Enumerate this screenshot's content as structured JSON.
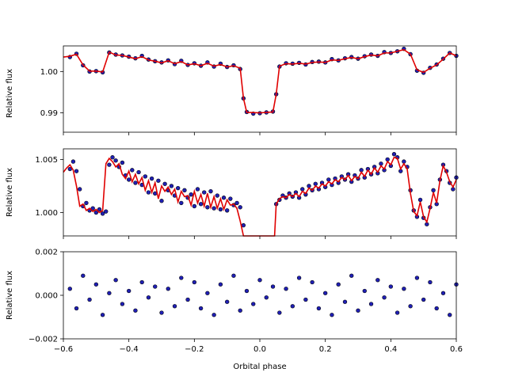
{
  "chart_data": [
    {
      "type": "scatter",
      "panel": "top",
      "ylabel": "Relative flux",
      "xlim": [
        -0.6,
        0.6
      ],
      "ylim": [
        0.9853,
        1.0062
      ],
      "yticks": [
        0.99,
        1.0
      ],
      "ytick_labels": [
        "0.99",
        "1.00"
      ],
      "x_tick_labels_shown": false,
      "series": [
        {
          "kind": "points",
          "color": "#1f1fb4",
          "x": [
            -0.58,
            -0.56,
            -0.54,
            -0.52,
            -0.5,
            -0.48,
            -0.46,
            -0.44,
            -0.42,
            -0.4,
            -0.38,
            -0.36,
            -0.34,
            -0.32,
            -0.3,
            -0.28,
            -0.26,
            -0.24,
            -0.22,
            -0.2,
            -0.18,
            -0.16,
            -0.14,
            -0.12,
            -0.1,
            -0.08,
            -0.06,
            -0.05,
            -0.04,
            -0.02,
            0.0,
            0.02,
            0.04,
            0.05,
            0.06,
            0.08,
            0.1,
            0.12,
            0.14,
            0.16,
            0.18,
            0.2,
            0.22,
            0.24,
            0.26,
            0.28,
            0.3,
            0.32,
            0.34,
            0.36,
            0.38,
            0.4,
            0.42,
            0.44,
            0.46,
            0.48,
            0.5,
            0.52,
            0.54,
            0.56,
            0.58,
            0.6
          ],
          "y": [
            1.0035,
            1.0043,
            1.0015,
            1.0,
            1.0001,
            0.9998,
            1.0046,
            1.0041,
            1.0039,
            1.0036,
            1.0032,
            1.0038,
            1.0029,
            1.0025,
            1.0022,
            1.0027,
            1.0018,
            1.0026,
            1.0016,
            1.002,
            1.0014,
            1.0022,
            1.0012,
            1.0019,
            1.0011,
            1.0015,
            1.0006,
            0.9935,
            0.9902,
            0.9898,
            0.9899,
            0.9901,
            0.9903,
            0.9945,
            1.0012,
            1.002,
            1.0019,
            1.0021,
            1.0017,
            1.0023,
            1.0024,
            1.0022,
            1.003,
            1.0027,
            1.0032,
            1.0035,
            1.0031,
            1.0037,
            1.0041,
            1.0038,
            1.0047,
            1.0045,
            1.0049,
            1.0055,
            1.0042,
            1.0002,
            0.9997,
            1.0009,
            1.0017,
            1.0031,
            1.0045,
            1.0038
          ]
        },
        {
          "kind": "model",
          "color": "#e00000",
          "x": [
            -0.6,
            -0.58,
            -0.56,
            -0.54,
            -0.52,
            -0.5,
            -0.48,
            -0.46,
            -0.44,
            -0.42,
            -0.4,
            -0.38,
            -0.36,
            -0.34,
            -0.32,
            -0.3,
            -0.28,
            -0.26,
            -0.24,
            -0.22,
            -0.2,
            -0.18,
            -0.16,
            -0.14,
            -0.12,
            -0.1,
            -0.08,
            -0.06,
            -0.05,
            -0.04,
            0.0,
            0.04,
            0.05,
            0.06,
            0.08,
            0.1,
            0.12,
            0.14,
            0.16,
            0.18,
            0.2,
            0.22,
            0.24,
            0.26,
            0.28,
            0.3,
            0.32,
            0.34,
            0.36,
            0.38,
            0.4,
            0.42,
            0.44,
            0.46,
            0.48,
            0.5,
            0.52,
            0.54,
            0.56,
            0.58,
            0.6
          ],
          "y": [
            1.0035,
            1.0037,
            1.0042,
            1.0016,
            1.0001,
            1.0001,
            0.9999,
            1.0047,
            1.004,
            1.0039,
            1.0035,
            1.0031,
            1.0036,
            1.0028,
            1.0025,
            1.0021,
            1.0026,
            1.0019,
            1.0024,
            1.0016,
            1.0019,
            1.0014,
            1.002,
            1.0013,
            1.0017,
            1.0011,
            1.0014,
            1.0008,
            0.9935,
            0.9901,
            0.99,
            0.9902,
            0.9945,
            1.0013,
            1.0019,
            1.0018,
            1.002,
            1.0018,
            1.0022,
            1.0023,
            1.0022,
            1.0028,
            1.0027,
            1.0031,
            1.0034,
            1.0031,
            1.0036,
            1.004,
            1.0038,
            1.0045,
            1.0045,
            1.0049,
            1.0053,
            1.0042,
            1.0004,
            0.9998,
            1.0008,
            1.0016,
            1.003,
            1.0045,
            1.0038
          ]
        }
      ]
    },
    {
      "type": "scatter",
      "panel": "middle",
      "ylabel": "Relative flux",
      "xlim": [
        -0.6,
        0.6
      ],
      "ylim": [
        0.9978,
        1.006
      ],
      "yticks": [
        1.0,
        1.005
      ],
      "ytick_labels": [
        "1.000",
        "1.005"
      ],
      "x_tick_labels_shown": false,
      "series": [
        {
          "kind": "points",
          "color": "#1f1fb4",
          "x": [
            -0.58,
            -0.57,
            -0.56,
            -0.55,
            -0.54,
            -0.53,
            -0.52,
            -0.51,
            -0.5,
            -0.49,
            -0.48,
            -0.47,
            -0.46,
            -0.45,
            -0.44,
            -0.43,
            -0.42,
            -0.41,
            -0.4,
            -0.39,
            -0.38,
            -0.37,
            -0.36,
            -0.35,
            -0.34,
            -0.33,
            -0.32,
            -0.31,
            -0.3,
            -0.29,
            -0.28,
            -0.27,
            -0.26,
            -0.25,
            -0.24,
            -0.23,
            -0.22,
            -0.21,
            -0.2,
            -0.19,
            -0.18,
            -0.17,
            -0.16,
            -0.15,
            -0.14,
            -0.13,
            -0.12,
            -0.11,
            -0.1,
            -0.09,
            -0.08,
            -0.07,
            -0.06,
            -0.05,
            0.05,
            0.06,
            0.07,
            0.08,
            0.09,
            0.1,
            0.11,
            0.12,
            0.13,
            0.14,
            0.15,
            0.16,
            0.17,
            0.18,
            0.19,
            0.2,
            0.21,
            0.22,
            0.23,
            0.24,
            0.25,
            0.26,
            0.27,
            0.28,
            0.29,
            0.3,
            0.31,
            0.32,
            0.33,
            0.34,
            0.35,
            0.36,
            0.37,
            0.38,
            0.39,
            0.4,
            0.41,
            0.42,
            0.43,
            0.44,
            0.45,
            0.46,
            0.47,
            0.48,
            0.49,
            0.5,
            0.51,
            0.52,
            0.53,
            0.54,
            0.55,
            0.56,
            0.57,
            0.58,
            0.59,
            0.6
          ],
          "y": [
            1.0041,
            1.0048,
            1.0039,
            1.0022,
            1.0006,
            1.0009,
            1.0002,
            1.0004,
            1.0,
            1.0003,
            0.9999,
            1.0001,
            1.0045,
            1.0052,
            1.0049,
            1.0043,
            1.0047,
            1.0035,
            1.0031,
            1.004,
            1.0028,
            1.0038,
            1.0026,
            1.0034,
            1.0019,
            1.0032,
            1.0018,
            1.003,
            1.0011,
            1.0027,
            1.0021,
            1.0025,
            1.0016,
            1.0023,
            1.0009,
            1.0021,
            1.0014,
            1.0017,
            1.0006,
            1.0022,
            1.0008,
            1.0019,
            1.0005,
            1.002,
            1.0004,
            1.0016,
            1.0003,
            1.0014,
            1.0002,
            1.0013,
            1.0007,
            1.0009,
            1.0005,
            0.9988,
            1.0008,
            1.0012,
            1.0016,
            1.0014,
            1.0018,
            1.0015,
            1.0019,
            1.0014,
            1.0022,
            1.0017,
            1.0025,
            1.0021,
            1.0027,
            1.0022,
            1.0028,
            1.0024,
            1.0031,
            1.0026,
            1.0032,
            1.0028,
            1.0034,
            1.0031,
            1.0036,
            1.0029,
            1.0035,
            1.0032,
            1.004,
            1.0033,
            1.0041,
            1.0036,
            1.0043,
            1.0037,
            1.0046,
            1.004,
            1.005,
            1.0044,
            1.0055,
            1.0052,
            1.0039,
            1.0048,
            1.0043,
            1.0021,
            1.0002,
            0.9996,
            1.0012,
            0.9995,
            0.9989,
            1.0005,
            1.0021,
            1.0008,
            1.0031,
            1.0045,
            1.0039,
            1.0028,
            1.0022,
            1.0033
          ]
        },
        {
          "kind": "model",
          "color": "#e00000",
          "x": [
            -0.6,
            -0.59,
            -0.58,
            -0.57,
            -0.56,
            -0.55,
            -0.54,
            -0.53,
            -0.52,
            -0.51,
            -0.5,
            -0.49,
            -0.48,
            -0.47,
            -0.46,
            -0.45,
            -0.44,
            -0.43,
            -0.42,
            -0.41,
            -0.4,
            -0.39,
            -0.38,
            -0.37,
            -0.36,
            -0.35,
            -0.34,
            -0.33,
            -0.32,
            -0.31,
            -0.3,
            -0.29,
            -0.28,
            -0.27,
            -0.26,
            -0.25,
            -0.24,
            -0.23,
            -0.22,
            -0.21,
            -0.2,
            -0.19,
            -0.18,
            -0.17,
            -0.16,
            -0.15,
            -0.14,
            -0.13,
            -0.12,
            -0.11,
            -0.1,
            -0.09,
            -0.08,
            -0.07,
            -0.06,
            -0.05,
            -0.045,
            0.045,
            0.05,
            0.06,
            0.07,
            0.08,
            0.09,
            0.1,
            0.11,
            0.12,
            0.13,
            0.14,
            0.15,
            0.16,
            0.17,
            0.18,
            0.19,
            0.2,
            0.21,
            0.22,
            0.23,
            0.24,
            0.25,
            0.26,
            0.27,
            0.28,
            0.29,
            0.3,
            0.31,
            0.32,
            0.33,
            0.34,
            0.35,
            0.36,
            0.37,
            0.38,
            0.39,
            0.4,
            0.41,
            0.42,
            0.43,
            0.44,
            0.45,
            0.46,
            0.47,
            0.48,
            0.49,
            0.5,
            0.51,
            0.52,
            0.53,
            0.54,
            0.55,
            0.56,
            0.57,
            0.58,
            0.59,
            0.6
          ],
          "y": [
            1.0038,
            1.0042,
            1.0045,
            1.004,
            1.0025,
            1.0006,
            1.0008,
            1.0002,
            1.0004,
            1.0001,
            1.0003,
            1.0,
            1.0002,
            1.0046,
            1.0051,
            1.0048,
            1.0043,
            1.0046,
            1.0036,
            1.0032,
            1.0039,
            1.0029,
            1.0036,
            1.0027,
            1.0033,
            1.0021,
            1.003,
            1.0019,
            1.0028,
            1.0013,
            1.0025,
            1.002,
            1.0024,
            1.0017,
            1.0022,
            1.001,
            1.002,
            1.0015,
            1.0016,
            1.0007,
            1.002,
            1.0009,
            1.0017,
            1.0006,
            1.0018,
            1.0005,
            1.0015,
            1.0004,
            1.0013,
            1.0003,
            1.0012,
            1.0007,
            1.0008,
            1.0004,
            0.9992,
            0.9978,
            0.9978,
            0.9978,
            1.0008,
            1.0013,
            1.0015,
            1.0014,
            1.0017,
            1.0015,
            1.0018,
            1.0015,
            1.002,
            1.0018,
            1.0023,
            1.0021,
            1.0025,
            1.0023,
            1.0027,
            1.0025,
            1.0029,
            1.0027,
            1.0031,
            1.0029,
            1.0033,
            1.0031,
            1.0035,
            1.003,
            1.0034,
            1.0032,
            1.0038,
            1.0034,
            1.004,
            1.0036,
            1.0042,
            1.0038,
            1.0044,
            1.0041,
            1.0048,
            1.0045,
            1.0052,
            1.0051,
            1.0041,
            1.0046,
            1.0041,
            1.0018,
            1.0001,
            0.9997,
            1.001,
            0.9996,
            0.9991,
            1.0004,
            1.0019,
            1.0009,
            1.003,
            1.0044,
            1.0038,
            1.0029,
            1.0024,
            1.0031
          ]
        }
      ]
    },
    {
      "type": "scatter",
      "panel": "bottom",
      "ylabel": "Relative flux",
      "xlabel": "Orbital phase",
      "xlim": [
        -0.6,
        0.6
      ],
      "ylim": [
        -0.002,
        0.002
      ],
      "yticks": [
        -0.002,
        0.0,
        0.002
      ],
      "ytick_labels": [
        "−0.002",
        "0.000",
        "0.002"
      ],
      "xticks": [
        -0.6,
        -0.4,
        -0.2,
        0.0,
        0.2,
        0.4,
        0.6
      ],
      "xtick_labels": [
        "−0.6",
        "−0.4",
        "−0.2",
        "0.0",
        "0.2",
        "0.4",
        "0.6"
      ],
      "x_tick_labels_shown": true,
      "series": [
        {
          "kind": "residuals",
          "color": "#1f1fb4",
          "x": [
            -0.58,
            -0.56,
            -0.54,
            -0.52,
            -0.5,
            -0.48,
            -0.46,
            -0.44,
            -0.42,
            -0.4,
            -0.38,
            -0.36,
            -0.34,
            -0.32,
            -0.3,
            -0.28,
            -0.26,
            -0.24,
            -0.22,
            -0.2,
            -0.18,
            -0.16,
            -0.14,
            -0.12,
            -0.1,
            -0.08,
            -0.06,
            -0.04,
            -0.02,
            0.0,
            0.02,
            0.04,
            0.06,
            0.08,
            0.1,
            0.12,
            0.14,
            0.16,
            0.18,
            0.2,
            0.22,
            0.24,
            0.26,
            0.28,
            0.3,
            0.32,
            0.34,
            0.36,
            0.38,
            0.4,
            0.42,
            0.44,
            0.46,
            0.48,
            0.5,
            0.52,
            0.54,
            0.56,
            0.58,
            0.6
          ],
          "y": [
            0.0003,
            -0.0006,
            0.0009,
            -0.0002,
            0.0005,
            -0.0009,
            0.0001,
            0.0007,
            -0.0004,
            0.0002,
            -0.0007,
            0.0006,
            -0.0001,
            0.0004,
            -0.0008,
            0.0003,
            -0.0005,
            0.0008,
            -0.0002,
            0.0006,
            -0.0006,
            0.0001,
            -0.0009,
            0.0005,
            -0.0003,
            0.0009,
            -0.0007,
            0.0002,
            -0.0004,
            0.0007,
            -0.0001,
            0.0004,
            -0.0008,
            0.0003,
            -0.0005,
            0.0008,
            -0.0002,
            0.0006,
            -0.0006,
            0.0001,
            -0.0009,
            0.0005,
            -0.0003,
            0.0009,
            -0.0007,
            0.0002,
            -0.0004,
            0.0007,
            -0.0001,
            0.0004,
            -0.0008,
            0.0003,
            -0.0005,
            0.0008,
            -0.0002,
            0.0006,
            -0.0006,
            0.0001,
            -0.0009,
            0.0005
          ]
        }
      ]
    }
  ]
}
